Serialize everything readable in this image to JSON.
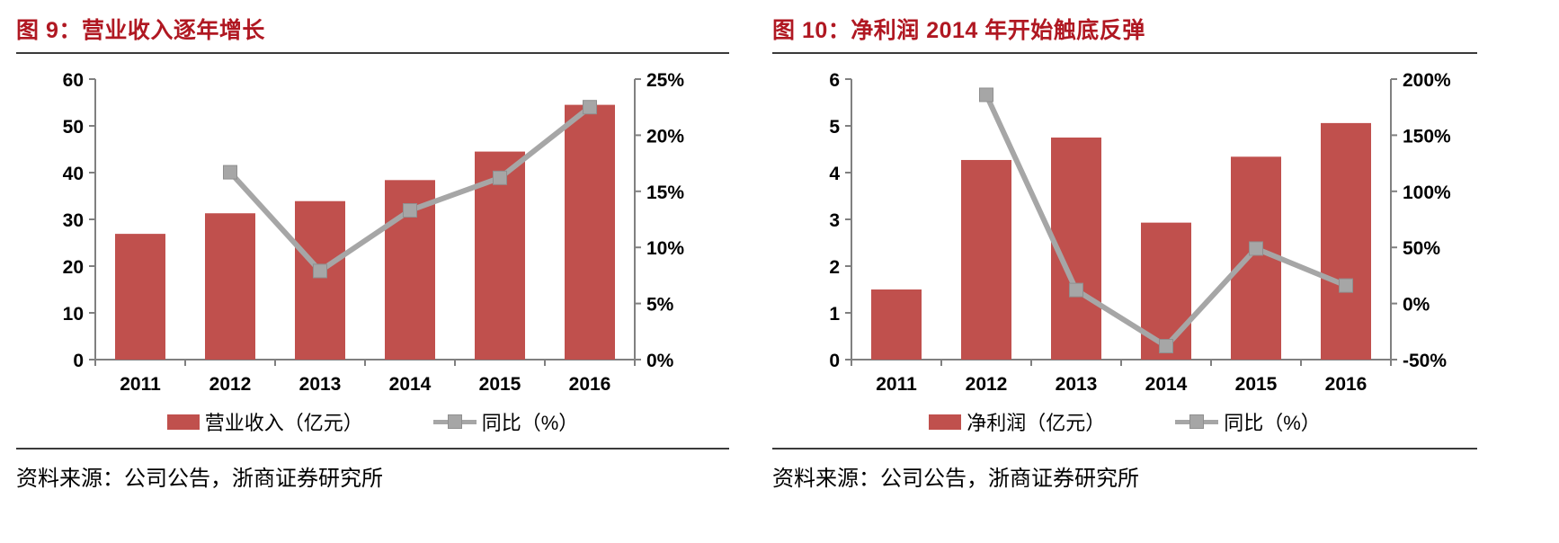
{
  "styles": {
    "title_color": "#b01822",
    "bar_color": "#c0504d",
    "line_color": "#a6a6a6",
    "marker_edge_color": "#8f8f8f",
    "axis_color": "#808080",
    "rule_color": "#3a3a3a"
  },
  "chart_data": [
    {
      "type": "bar",
      "combo": "bar+line dual axis",
      "title": "图 9：营业收入逐年增长",
      "categories": [
        "2011",
        "2012",
        "2013",
        "2014",
        "2015",
        "2016"
      ],
      "series": [
        {
          "name": "营业收入（亿元）",
          "type": "bar",
          "axis": "left",
          "color": "#c0504d",
          "values": [
            26.9,
            31.3,
            33.9,
            38.4,
            44.5,
            54.5
          ]
        },
        {
          "name": "同比（%）",
          "type": "line",
          "axis": "right",
          "color": "#a6a6a6",
          "values": [
            null,
            16.7,
            7.9,
            13.3,
            16.2,
            22.5
          ]
        }
      ],
      "left_axis": {
        "min": 0,
        "max": 60,
        "step": 10,
        "suffix": ""
      },
      "right_axis": {
        "min": 0,
        "max": 25,
        "step": 5,
        "suffix": "%"
      },
      "grid": false,
      "legend_position": "bottom",
      "source": "资料来源：公司公告，浙商证券研究所"
    },
    {
      "type": "bar",
      "combo": "bar+line dual axis",
      "title": "图 10：净利润 2014 年开始触底反弹",
      "categories": [
        "2011",
        "2012",
        "2013",
        "2014",
        "2015",
        "2016"
      ],
      "series": [
        {
          "name": "净利润（亿元）",
          "type": "bar",
          "axis": "left",
          "color": "#c0504d",
          "values": [
            1.5,
            4.27,
            4.75,
            2.93,
            4.34,
            5.06
          ]
        },
        {
          "name": "同比（%）",
          "type": "line",
          "axis": "right",
          "color": "#a6a6a6",
          "values": [
            null,
            186,
            12,
            -38,
            49,
            16
          ]
        }
      ],
      "left_axis": {
        "min": 0,
        "max": 6,
        "step": 1,
        "suffix": ""
      },
      "right_axis": {
        "min": -50,
        "max": 200,
        "step": 50,
        "suffix": "%"
      },
      "grid": false,
      "legend_position": "bottom",
      "source": "资料来源：公司公告，浙商证券研究所"
    }
  ]
}
